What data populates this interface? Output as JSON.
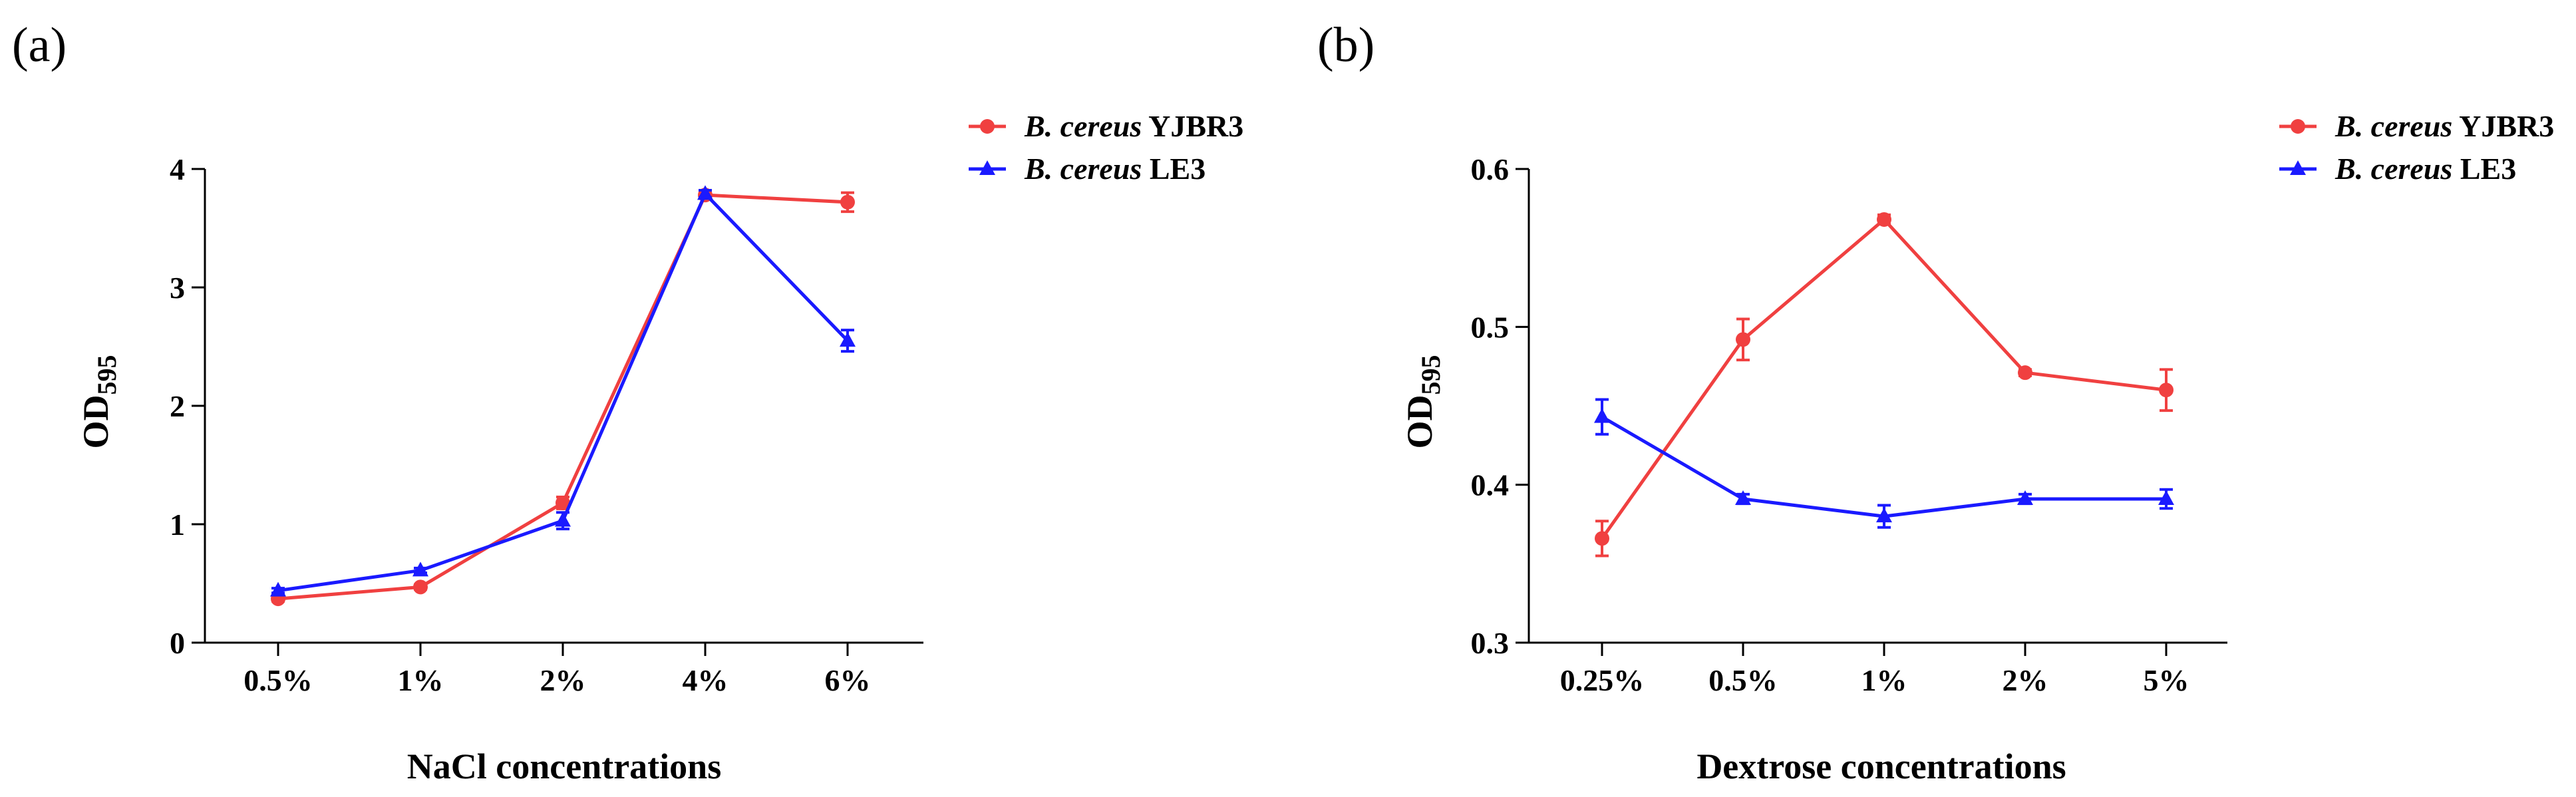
{
  "colors": {
    "yjbr3": "#f04040",
    "le3": "#1a1aff",
    "axis": "#000000"
  },
  "chart_data": [
    {
      "panel_label": "(a)",
      "type": "line",
      "categories": [
        "0.5%",
        "1%",
        "2%",
        "4%",
        "6%"
      ],
      "series": [
        {
          "name_italic": "B. cereus",
          "name_strain": "YJBR3",
          "color": "#f04040",
          "marker": "circle",
          "values": [
            0.37,
            0.47,
            1.18,
            3.78,
            3.72
          ],
          "errors": [
            0.02,
            0.02,
            0.05,
            0.03,
            0.08
          ]
        },
        {
          "name_italic": "B. cereus",
          "name_strain": "LE3",
          "color": "#1a1aff",
          "marker": "triangle",
          "values": [
            0.44,
            0.61,
            1.03,
            3.79,
            2.55
          ],
          "errors": [
            0.02,
            0.02,
            0.07,
            0.03,
            0.09
          ]
        }
      ],
      "ylim": [
        0,
        4
      ],
      "yticks": [
        "0",
        "1",
        "2",
        "3",
        "4"
      ],
      "ytick_values": [
        0,
        1,
        2,
        3,
        4
      ],
      "ylabel_main": "OD",
      "ylabel_sub": "595",
      "xlabel": "NaCl concentrations",
      "legend": "top-right"
    },
    {
      "panel_label": "(b)",
      "type": "line",
      "categories": [
        "0.25%",
        "0.5%",
        "1%",
        "2%",
        "5%"
      ],
      "series": [
        {
          "name_italic": "B. cereus",
          "name_strain": "YJBR3",
          "color": "#f04040",
          "marker": "circle",
          "values": [
            0.366,
            0.492,
            0.568,
            0.471,
            0.46
          ],
          "errors": [
            0.011,
            0.013,
            0.003,
            0.002,
            0.013
          ]
        },
        {
          "name_italic": "B. cereus",
          "name_strain": "LE3",
          "color": "#1a1aff",
          "marker": "triangle",
          "values": [
            0.443,
            0.391,
            0.38,
            0.391,
            0.391
          ],
          "errors": [
            0.011,
            0.003,
            0.007,
            0.003,
            0.006
          ]
        }
      ],
      "ylim": [
        0.3,
        0.6
      ],
      "yticks": [
        "0.3",
        "0.4",
        "0.5",
        "0.6"
      ],
      "ytick_values": [
        0.3,
        0.4,
        0.5,
        0.6
      ],
      "ylabel_main": "OD",
      "ylabel_sub": "595",
      "xlabel": "Dextrose concentrations",
      "legend": "top-right"
    }
  ]
}
